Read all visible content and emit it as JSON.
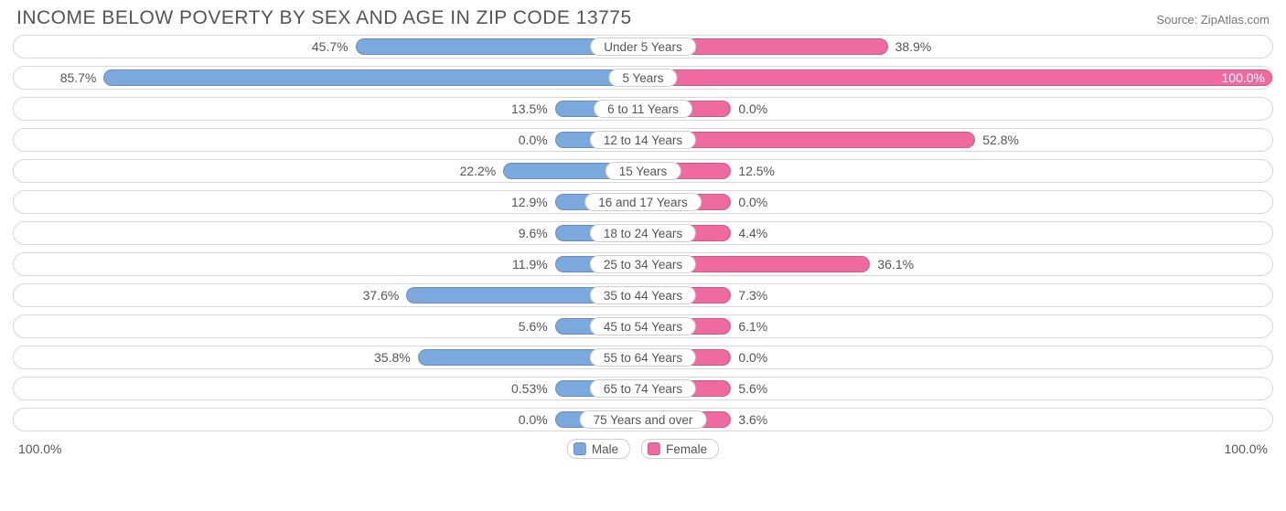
{
  "title": "INCOME BELOW POVERTY BY SEX AND AGE IN ZIP CODE 13775",
  "source": "Source: ZipAtlas.com",
  "chart": {
    "type": "diverging-bar",
    "background_color": "#ffffff",
    "row_border_color": "#d7d7d7",
    "label_fontsize": 14,
    "age_label_fontsize": 13.5,
    "male_color": "#7ba8dd",
    "female_color": "#ee6aa0",
    "axis_max_pct": 100.0,
    "min_bar_pct": 14.0,
    "axis_left_label": "100.0%",
    "axis_right_label": "100.0%",
    "rows": [
      {
        "age": "Under 5 Years",
        "male": 45.7,
        "male_label": "45.7%",
        "female": 38.9,
        "female_label": "38.9%"
      },
      {
        "age": "5 Years",
        "male": 85.7,
        "male_label": "85.7%",
        "female": 100.0,
        "female_label": "100.0%",
        "female_label_inside": true
      },
      {
        "age": "6 to 11 Years",
        "male": 13.5,
        "male_label": "13.5%",
        "female": 0.0,
        "female_label": "0.0%"
      },
      {
        "age": "12 to 14 Years",
        "male": 0.0,
        "male_label": "0.0%",
        "female": 52.8,
        "female_label": "52.8%"
      },
      {
        "age": "15 Years",
        "male": 22.2,
        "male_label": "22.2%",
        "female": 12.5,
        "female_label": "12.5%"
      },
      {
        "age": "16 and 17 Years",
        "male": 12.9,
        "male_label": "12.9%",
        "female": 0.0,
        "female_label": "0.0%"
      },
      {
        "age": "18 to 24 Years",
        "male": 9.6,
        "male_label": "9.6%",
        "female": 4.4,
        "female_label": "4.4%"
      },
      {
        "age": "25 to 34 Years",
        "male": 11.9,
        "male_label": "11.9%",
        "female": 36.1,
        "female_label": "36.1%"
      },
      {
        "age": "35 to 44 Years",
        "male": 37.6,
        "male_label": "37.6%",
        "female": 7.3,
        "female_label": "7.3%"
      },
      {
        "age": "45 to 54 Years",
        "male": 5.6,
        "male_label": "5.6%",
        "female": 6.1,
        "female_label": "6.1%"
      },
      {
        "age": "55 to 64 Years",
        "male": 35.8,
        "male_label": "35.8%",
        "female": 0.0,
        "female_label": "0.0%"
      },
      {
        "age": "65 to 74 Years",
        "male": 0.53,
        "male_label": "0.53%",
        "female": 5.6,
        "female_label": "5.6%"
      },
      {
        "age": "75 Years and over",
        "male": 0.0,
        "male_label": "0.0%",
        "female": 3.6,
        "female_label": "3.6%"
      }
    ],
    "legend": {
      "male": "Male",
      "female": "Female"
    }
  }
}
